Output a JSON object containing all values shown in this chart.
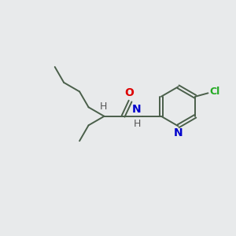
{
  "background_color": "#e8eaeb",
  "bond_color": "#4a5f4a",
  "bond_width": 1.4,
  "atom_colors": {
    "O": "#dd0000",
    "N": "#0000cc",
    "Cl": "#22aa22",
    "H": "#555555",
    "C": "#4a5f4a"
  },
  "font_size": 9,
  "fig_size": [
    3.0,
    3.0
  ],
  "dpi": 100
}
